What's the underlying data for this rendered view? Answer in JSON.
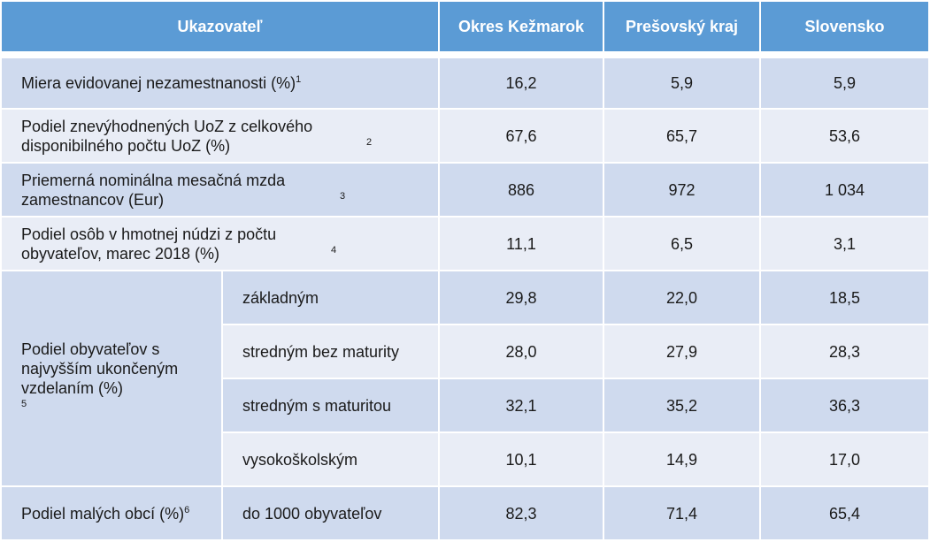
{
  "header": {
    "indicator": "Ukazovateľ",
    "district": "Okres Kežmarok",
    "region": "Prešovský kraj",
    "country": "Slovensko"
  },
  "rows": [
    {
      "label": "Miera evidovanej nezamestnanosti (%)",
      "note": "1",
      "values": [
        "16,2",
        "5,9",
        "5,9"
      ]
    },
    {
      "label": "Podiel znevýhodnených UoZ z celkového disponibilného počtu UoZ (%)",
      "note": "2",
      "values": [
        "67,6",
        "65,7",
        "53,6"
      ]
    },
    {
      "label": "Priemerná nominálna mesačná mzda zamestnancov (Eur)",
      "note": "3",
      "values": [
        "886",
        "972",
        "1 034"
      ]
    },
    {
      "label": "Podiel osôb v hmotnej núdzi z počtu obyvateľov, marec 2018 (%)",
      "note": "4",
      "values": [
        "11,1",
        "6,5",
        "3,1"
      ]
    }
  ],
  "education": {
    "label": "Podiel obyvateľov s najvyšším ukončeným vzdelaním (%)",
    "note": "5",
    "subrows": [
      {
        "label": "základným",
        "values": [
          "29,8",
          "22,0",
          "18,5"
        ]
      },
      {
        "label": "stredným bez maturity",
        "values": [
          "28,0",
          "27,9",
          "28,3"
        ]
      },
      {
        "label": "stredným s maturitou",
        "values": [
          "32,1",
          "35,2",
          "36,3"
        ]
      },
      {
        "label": "vysokoškolským",
        "values": [
          "10,1",
          "14,9",
          "17,0"
        ]
      }
    ]
  },
  "small_villages": {
    "label": "Podiel malých obcí (%)",
    "note": "6",
    "sublabel": "do 1000 obyvateľov",
    "values": [
      "82,3",
      "71,4",
      "65,4"
    ]
  }
}
